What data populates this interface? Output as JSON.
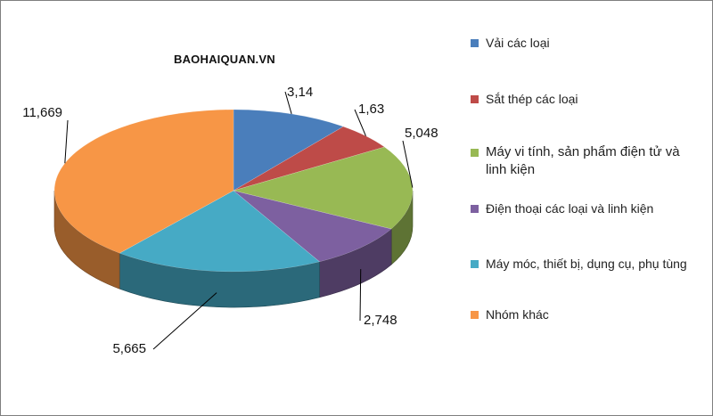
{
  "watermark": "BAOHAIQUAN.VN",
  "chart_data": {
    "type": "pie",
    "title": "",
    "legend_position": "right",
    "series": [
      {
        "name": "Vải các loại",
        "value": 3.14,
        "label": "3,14",
        "color": "#4a7ebb"
      },
      {
        "name": "Sắt thép các loại",
        "value": 1.63,
        "label": "1,63",
        "color": "#be4b48"
      },
      {
        "name": "Máy vi tính, sản phẩm điện tử và linh kiện",
        "value": 5.048,
        "label": "5,048",
        "color": "#98b954"
      },
      {
        "name": "Điện thoại các loại và linh kiện",
        "value": 2.748,
        "label": "2,748",
        "color": "#7d60a0"
      },
      {
        "name": "Máy móc, thiết bị, dụng cụ, phụ tùng",
        "value": 5.665,
        "label": "5,665",
        "color": "#46aac5"
      },
      {
        "name": "Nhóm khác",
        "value": 11.669,
        "label": "11,669",
        "color": "#f79646"
      }
    ]
  }
}
